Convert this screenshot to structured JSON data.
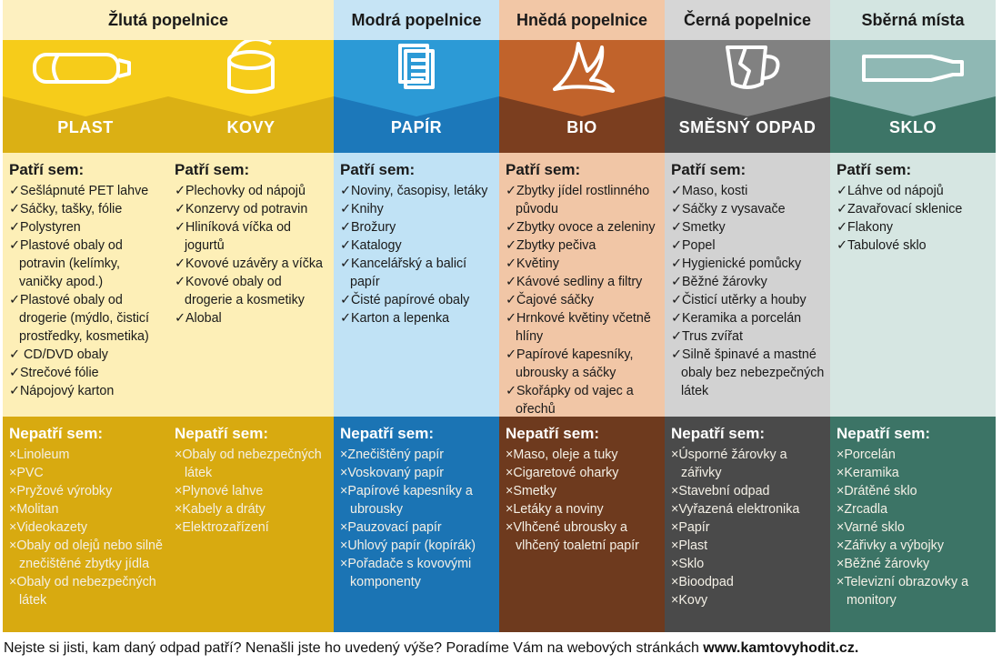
{
  "bins": [
    {
      "title": "Žlutá popelnice",
      "categories": [
        {
          "name": "PLAST",
          "yes_heading": "Patří sem:",
          "yes": [
            "✓Sešlápnuté PET lahve",
            "✓Sáčky, tašky, fólie",
            "✓Polystyren",
            "✓Plastové obaly od potravin (kelímky, vaničky apod.)",
            "✓Plastové obaly od drogerie (mýdlo, čisticí prostředky, kosmetika)",
            "✓ CD/DVD obaly",
            "✓Strečové fólie",
            "✓Nápojový karton"
          ],
          "no_heading": "Nepatří sem:",
          "no": [
            "×Linoleum",
            "×PVC",
            "×Pryžové výrobky",
            "×Molitan",
            "×Videokazety",
            "×Obaly od olejů nebo silně znečištěné zbytky jídla",
            "×Obaly od nebezpečných látek"
          ]
        },
        {
          "name": "KOVY",
          "yes_heading": "Patří sem:",
          "yes": [
            "✓Plechovky od nápojů",
            "✓Konzervy od potravin",
            "✓Hliníková víčka od jogurtů",
            "✓Kovové uzávěry a víčka",
            "✓Kovové obaly od drogerie a kosmetiky",
            "✓Alobal"
          ],
          "no_heading": "Nepatří sem:",
          "no": [
            "×Obaly od nebezpečných látek",
            "×Plynové lahve",
            "×Kabely a dráty",
            "×Elektrozařízení"
          ]
        }
      ]
    },
    {
      "title": "Modrá popelnice",
      "categories": [
        {
          "name": "PAPÍR",
          "yes_heading": "Patří sem:",
          "yes": [
            "✓Noviny, časopisy, letáky",
            "✓Knihy",
            "✓Brožury",
            "✓Katalogy",
            "✓Kancelářský a balicí papír",
            "✓Čisté papírové obaly",
            "✓Karton a lepenka"
          ],
          "no_heading": "Nepatří sem:",
          "no": [
            "×Znečištěný papír",
            "×Voskovaný papír",
            "×Papírové kapesníky a ubrousky",
            "×Pauzovací papír",
            "×Uhlový papír (kopírák)",
            "×Pořadače s kovovými komponenty"
          ]
        }
      ]
    },
    {
      "title": "Hnědá popelnice",
      "categories": [
        {
          "name": "BIO",
          "yes_heading": "Patří sem:",
          "yes": [
            "✓Zbytky jídel rostlinného původu",
            "✓Zbytky ovoce a zeleniny",
            "✓Zbytky pečiva",
            "✓Květiny",
            "✓Kávové sedliny a filtry",
            "✓Čajové sáčky",
            "✓Hrnkové květiny včetně hlíny",
            "✓Papírové kapesníky, ubrousky a sáčky",
            "✓Skořápky od vajec a ořechů"
          ],
          "no_heading": "Nepatří sem:",
          "no": [
            "×Maso, oleje a tuky",
            "×Cigaretové oharky",
            "×Smetky",
            "×Letáky a noviny",
            "×Vlhčené ubrousky a vlhčený toaletní papír"
          ]
        }
      ]
    },
    {
      "title": "Černá popelnice",
      "categories": [
        {
          "name": "SMĚSNÝ ODPAD",
          "yes_heading": "Patří sem:",
          "yes": [
            "✓Maso, kosti",
            "✓Sáčky z vysavače",
            "✓Smetky",
            "✓Popel",
            "✓Hygienické pomůcky",
            "✓Běžné žárovky",
            "✓Čisticí utěrky a houby",
            "✓Keramika a porcelán",
            "✓Trus zvířat",
            "✓Silně špinavé a mastné obaly bez nebezpečných látek"
          ],
          "no_heading": "Nepatří sem:",
          "no": [
            "×Úsporné žárovky a zářivky",
            "×Stavební odpad",
            "×Vyřazená elektronika",
            "×Papír",
            "×Plast",
            "×Sklo",
            "×Bioodpad",
            "×Kovy"
          ]
        }
      ]
    },
    {
      "title": "Sběrná místa",
      "categories": [
        {
          "name": "SKLO",
          "yes_heading": "Patří sem:",
          "yes": [
            "✓Láhve od nápojů",
            "✓Zavařovací sklenice",
            "✓Flakony",
            "✓Tabulové sklo"
          ],
          "no_heading": "Nepatří sem:",
          "no": [
            "×Porcelán",
            "×Keramika",
            "×Drátěné sklo",
            "×Zrcadla",
            "×Varné sklo",
            "×Zářivky a výbojky",
            "×Běžné žárovky",
            "×Televizní obrazovky a monitory"
          ]
        }
      ]
    }
  ],
  "footer": {
    "text": "Nejste si jisti, kam daný odpad patří? Nenašli jste ho uvedený výše? Poradíme Vám na webových stránkách ",
    "link": "www.kamtovyhodit.cz."
  }
}
